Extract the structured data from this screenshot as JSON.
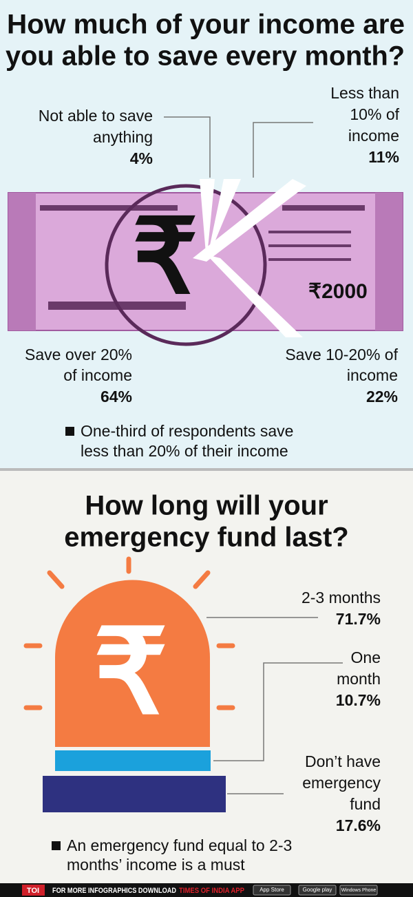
{
  "savings": {
    "title_lines": [
      "How much of your income are",
      "you able to save every month?"
    ],
    "items": [
      {
        "label_lines": [
          "Not able to save",
          "anything"
        ],
        "value": "4%"
      },
      {
        "label_lines": [
          "Less than",
          "10% of",
          "income"
        ],
        "value": "11%"
      },
      {
        "label_lines": [
          "Save over 20%",
          "of income"
        ],
        "value": "64%"
      },
      {
        "label_lines": [
          "Save 10-20% of",
          "income"
        ],
        "value": "22%"
      }
    ],
    "note_lines": [
      "One-third of respondents save",
      "less than 20% of their income"
    ]
  },
  "emergency": {
    "title_lines": [
      "How long will your",
      "emergency fund last?"
    ],
    "items": [
      {
        "label_lines": [
          "2-3 months"
        ],
        "value": "71.7%"
      },
      {
        "label_lines": [
          "One",
          "month"
        ],
        "value": "10.7%"
      },
      {
        "label_lines": [
          "Don’t have",
          "emergency",
          "fund"
        ],
        "value": "17.6%"
      }
    ],
    "note_lines": [
      "An emergency fund equal to 2-3",
      "months’ income is a must"
    ]
  },
  "footer": {
    "brand": "TOI",
    "text": "FOR MORE INFOGRAPHICS DOWNLOAD",
    "app": "TIMES OF INDIA APP",
    "badges": [
      "App Store",
      "Google play",
      "Windows Phone"
    ]
  }
}
